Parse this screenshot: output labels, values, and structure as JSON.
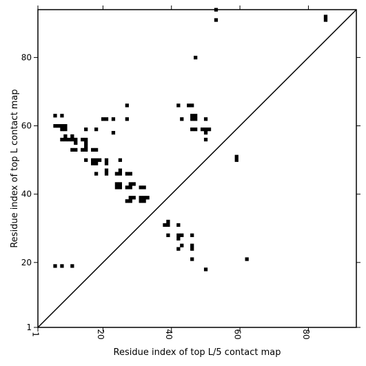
{
  "chart_data": {
    "type": "scatter",
    "title": "",
    "xlabel": "Residue index of top L/5 contact map",
    "ylabel": "Residue index of top L contact map",
    "xlim": [
      1,
      94
    ],
    "ylim": [
      1,
      94
    ],
    "xticks": [
      1,
      20,
      40,
      60,
      80
    ],
    "yticks": [
      1,
      20,
      40,
      60,
      80
    ],
    "xtick_labels": [
      "1",
      "20",
      "40",
      "60",
      "80"
    ],
    "ytick_labels": [
      "1",
      "20",
      "40",
      "60",
      "80"
    ],
    "diagonal": true,
    "grid": false,
    "legend": false,
    "colors": {
      "cell": "#000000",
      "diagonal": "#000000",
      "frame": "#000000",
      "background": "#ffffff"
    },
    "cells": [
      [
        85,
        92
      ],
      [
        85,
        91
      ],
      [
        53,
        94
      ],
      [
        53,
        91
      ],
      [
        47,
        80
      ],
      [
        6,
        63
      ],
      [
        8,
        63
      ],
      [
        6,
        60
      ],
      [
        7,
        60
      ],
      [
        8,
        60
      ],
      [
        9,
        60
      ],
      [
        8,
        59
      ],
      [
        9,
        59
      ],
      [
        9,
        57
      ],
      [
        8,
        56
      ],
      [
        9,
        56
      ],
      [
        10,
        56
      ],
      [
        11,
        56
      ],
      [
        11,
        57
      ],
      [
        12,
        56
      ],
      [
        12,
        55
      ],
      [
        11,
        53
      ],
      [
        12,
        53
      ],
      [
        14,
        53
      ],
      [
        15,
        53
      ],
      [
        15,
        54
      ],
      [
        15,
        55
      ],
      [
        14,
        56
      ],
      [
        15,
        56
      ],
      [
        15,
        59
      ],
      [
        18,
        59
      ],
      [
        20,
        62
      ],
      [
        21,
        62
      ],
      [
        23,
        62
      ],
      [
        23,
        58
      ],
      [
        27,
        66
      ],
      [
        27,
        62
      ],
      [
        15,
        50
      ],
      [
        17,
        50
      ],
      [
        17,
        49
      ],
      [
        18,
        49
      ],
      [
        18,
        50
      ],
      [
        19,
        50
      ],
      [
        18,
        53
      ],
      [
        17,
        53
      ],
      [
        18,
        46
      ],
      [
        21,
        50
      ],
      [
        21,
        49
      ],
      [
        21,
        47
      ],
      [
        21,
        46
      ],
      [
        25,
        50
      ],
      [
        24,
        46
      ],
      [
        25,
        46
      ],
      [
        25,
        47
      ],
      [
        24,
        43
      ],
      [
        25,
        43
      ],
      [
        24,
        42
      ],
      [
        25,
        42
      ],
      [
        27,
        46
      ],
      [
        28,
        46
      ],
      [
        27,
        42
      ],
      [
        28,
        42
      ],
      [
        28,
        43
      ],
      [
        29,
        43
      ],
      [
        28,
        39
      ],
      [
        29,
        39
      ],
      [
        27,
        38
      ],
      [
        28,
        38
      ],
      [
        31,
        42
      ],
      [
        32,
        42
      ],
      [
        31,
        39
      ],
      [
        32,
        39
      ],
      [
        33,
        39
      ],
      [
        31,
        38
      ],
      [
        32,
        38
      ],
      [
        42,
        66
      ],
      [
        45,
        66
      ],
      [
        46,
        66
      ],
      [
        43,
        62
      ],
      [
        46,
        63
      ],
      [
        47,
        63
      ],
      [
        46,
        62
      ],
      [
        47,
        62
      ],
      [
        50,
        62
      ],
      [
        46,
        59
      ],
      [
        47,
        59
      ],
      [
        49,
        59
      ],
      [
        50,
        59
      ],
      [
        51,
        59
      ],
      [
        50,
        58
      ],
      [
        50,
        56
      ],
      [
        59,
        51
      ],
      [
        59,
        50
      ],
      [
        39,
        32
      ],
      [
        39,
        31
      ],
      [
        38,
        31
      ],
      [
        42,
        31
      ],
      [
        39,
        28
      ],
      [
        42,
        28
      ],
      [
        43,
        28
      ],
      [
        42,
        27
      ],
      [
        46,
        28
      ],
      [
        43,
        25
      ],
      [
        42,
        24
      ],
      [
        46,
        25
      ],
      [
        46,
        24
      ],
      [
        46,
        21
      ],
      [
        50,
        18
      ],
      [
        62,
        21
      ],
      [
        6,
        19
      ],
      [
        8,
        19
      ],
      [
        11,
        19
      ]
    ]
  }
}
